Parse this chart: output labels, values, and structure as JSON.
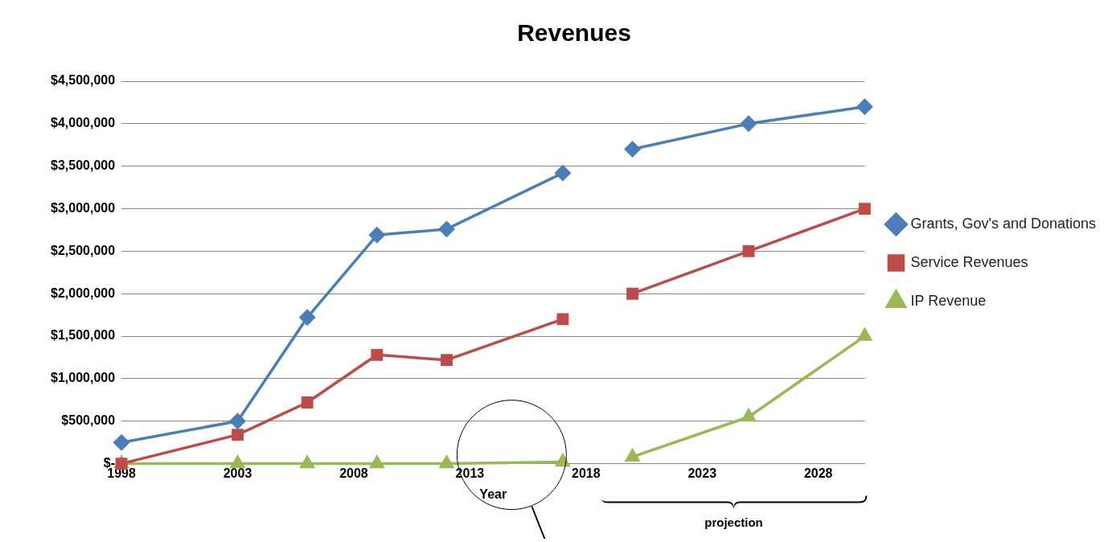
{
  "chart_data": {
    "type": "line",
    "title": "Revenues",
    "xlabel": "Year",
    "x": [
      1998,
      2003,
      2006,
      2009,
      2012,
      2017,
      2018,
      2020,
      2025,
      2030
    ],
    "series": [
      {
        "name": "Grants, Gov's and Donations",
        "color": "#4a7ebb",
        "marker": "diamond",
        "values": [
          250000,
          500000,
          1720000,
          2690000,
          2760000,
          3420000,
          null,
          3700000,
          4000000,
          4200000
        ]
      },
      {
        "name": "Service Revenues",
        "color": "#be4b48",
        "marker": "square",
        "values": [
          0,
          340000,
          720000,
          1280000,
          1220000,
          1700000,
          null,
          2000000,
          2500000,
          3000000
        ]
      },
      {
        "name": "IP Revenue",
        "color": "#98b954",
        "marker": "triangle",
        "values": [
          0,
          0,
          0,
          0,
          0,
          20000,
          null,
          80000,
          550000,
          1500000
        ]
      }
    ],
    "xlim": [
      1998,
      2030
    ],
    "xticks": [
      1998,
      2003,
      2008,
      2013,
      2018,
      2023,
      2028
    ],
    "ylim": [
      0,
      4500000
    ],
    "yticks": [
      {
        "value": 0,
        "label": "$-"
      },
      {
        "value": 500000,
        "label": "$500,000"
      },
      {
        "value": 1000000,
        "label": "$1,000,000"
      },
      {
        "value": 1500000,
        "label": "$1,500,000"
      },
      {
        "value": 2000000,
        "label": "$2,000,000"
      },
      {
        "value": 2500000,
        "label": "$2,500,000"
      },
      {
        "value": 3000000,
        "label": "$3,000,000"
      },
      {
        "value": 3500000,
        "label": "$3,500,000"
      },
      {
        "value": 4000000,
        "label": "$4,000,000"
      },
      {
        "value": 4500000,
        "label": "$4,500,000"
      }
    ],
    "grid": "y",
    "legend": "right",
    "line_style": "solid",
    "annotations": [
      "projection"
    ]
  }
}
